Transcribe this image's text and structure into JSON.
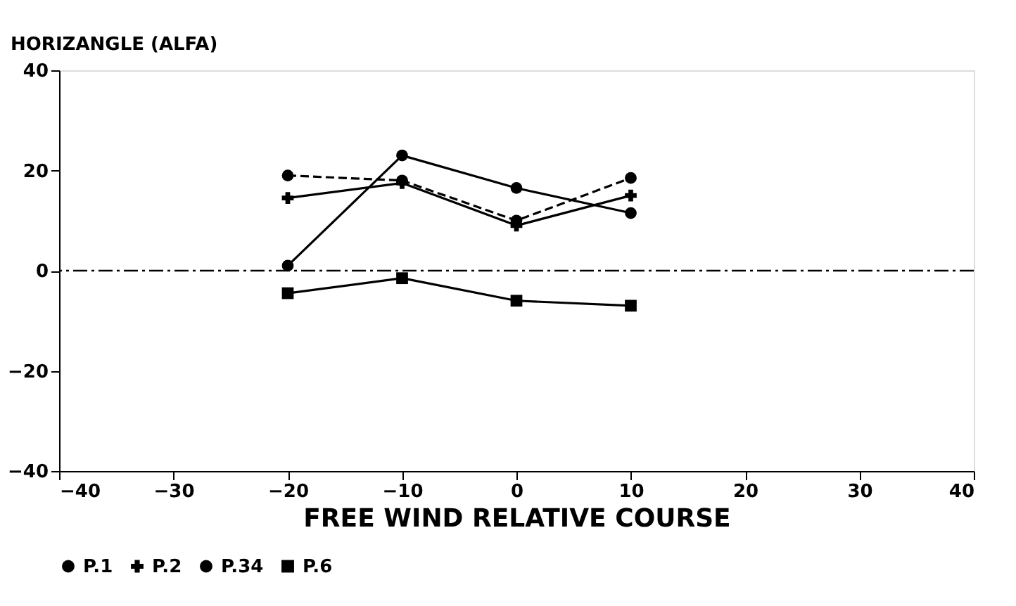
{
  "chart_data": {
    "type": "line",
    "xlabel": "FREE WIND RELATIVE COURSE",
    "ylabel": "HORIZANGLE (ALFA)",
    "x": [
      -20,
      -10,
      0,
      10
    ],
    "xlim": [
      -40,
      40
    ],
    "xticks": [
      -40,
      -30,
      -20,
      -10,
      0,
      10,
      20,
      30,
      40
    ],
    "ylim": [
      -40,
      40
    ],
    "yticks": [
      -40,
      -20,
      0,
      20,
      40
    ],
    "grid": false,
    "legend": "bottom",
    "ref_lines": [
      {
        "axis": "y",
        "value": 0,
        "label": null,
        "color": "#000000",
        "line_style": "dashed"
      }
    ],
    "series": [
      {
        "name": "P.1",
        "color": "#000000",
        "marker": "circle",
        "line_style": "dashed",
        "values": [
          19,
          18,
          10,
          18.5
        ]
      },
      {
        "name": "P.2",
        "color": "#000000",
        "marker": "cross",
        "line_style": "solid",
        "values": [
          14.5,
          17.5,
          9,
          15
        ]
      },
      {
        "name": "P.34",
        "color": "#000000",
        "marker": "circle",
        "line_style": "solid",
        "values": [
          1,
          23,
          16.5,
          11.5
        ]
      },
      {
        "name": "P.6",
        "color": "#000000",
        "marker": "square",
        "line_style": "solid",
        "values": [
          -4.5,
          -1.5,
          -6,
          -7
        ]
      }
    ]
  }
}
